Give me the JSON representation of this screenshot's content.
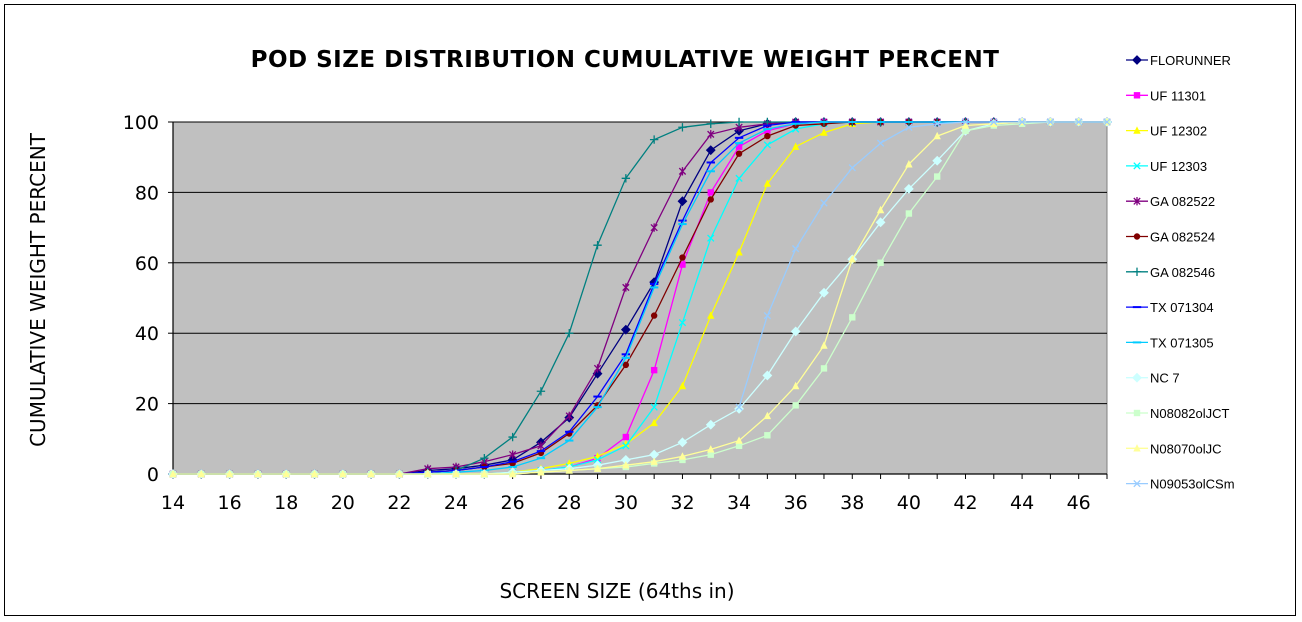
{
  "chart_data": {
    "type": "line",
    "title": "POD SIZE DISTRIBUTION CUMULATIVE WEIGHT PERCENT",
    "xlabel": "SCREEN SIZE (64ths in)",
    "ylabel": "CUMULATIVE WEIGHT PERCENT",
    "xlim": [
      14,
      47
    ],
    "ylim": [
      0,
      100
    ],
    "x_ticks": [
      "14",
      "16",
      "18",
      "20",
      "22",
      "24",
      "26",
      "28",
      "30",
      "32",
      "34",
      "36",
      "38",
      "40",
      "42",
      "44",
      "46"
    ],
    "y_ticks": [
      "0",
      "20",
      "40",
      "60",
      "80",
      "100"
    ],
    "plot_background": "#c0c0c0",
    "grid": "horizontal",
    "legend_position": "right",
    "series": [
      {
        "name": "FLORUNNER",
        "color": "#000080",
        "marker": "diamond",
        "x": [
          14,
          15,
          16,
          17,
          18,
          19,
          20,
          21,
          22,
          23,
          24,
          25,
          26,
          27,
          28,
          29,
          30,
          31,
          32,
          33,
          34,
          35,
          36,
          37,
          38,
          39,
          40,
          41,
          42,
          43,
          44,
          45,
          46,
          47
        ],
        "y": [
          0,
          0,
          0,
          0,
          0,
          0,
          0,
          0,
          0,
          1,
          1.5,
          2.5,
          4,
          9,
          16,
          28.5,
          41,
          54.5,
          77.5,
          92,
          97.5,
          99.5,
          100,
          100,
          100,
          100,
          100,
          100,
          100,
          100,
          100,
          100,
          100,
          100
        ]
      },
      {
        "name": "UF 11301",
        "color": "#ff00ff",
        "marker": "square",
        "x": [
          14,
          15,
          16,
          17,
          18,
          19,
          20,
          21,
          22,
          23,
          24,
          25,
          26,
          27,
          28,
          29,
          30,
          31,
          32,
          33,
          34,
          35,
          36,
          37,
          38,
          39,
          40,
          41,
          42,
          43,
          44,
          45,
          46,
          47
        ],
        "y": [
          0,
          0,
          0,
          0,
          0,
          0,
          0,
          0,
          0,
          0,
          0,
          0,
          0.5,
          1,
          2,
          4.5,
          10.5,
          29.5,
          59.5,
          80,
          93,
          97.5,
          99.5,
          100,
          100,
          100,
          100,
          100,
          100,
          100,
          100,
          100,
          100,
          100
        ]
      },
      {
        "name": "UF 12302",
        "color": "#ffff00",
        "marker": "triangle",
        "x": [
          14,
          15,
          16,
          17,
          18,
          19,
          20,
          21,
          22,
          23,
          24,
          25,
          26,
          27,
          28,
          29,
          30,
          31,
          32,
          33,
          34,
          35,
          36,
          37,
          38,
          39,
          40,
          41,
          42,
          43,
          44,
          45,
          46,
          47
        ],
        "y": [
          0,
          0,
          0,
          0,
          0,
          0,
          0,
          0,
          0,
          0,
          0,
          0,
          0.5,
          1.5,
          3,
          5,
          8.5,
          14.5,
          25,
          45,
          63,
          82.5,
          93,
          97,
          99.5,
          100,
          100,
          100,
          100,
          100,
          100,
          100,
          100,
          100
        ]
      },
      {
        "name": "UF 12303",
        "color": "#00ffff",
        "marker": "x",
        "x": [
          14,
          15,
          16,
          17,
          18,
          19,
          20,
          21,
          22,
          23,
          24,
          25,
          26,
          27,
          28,
          29,
          30,
          31,
          32,
          33,
          34,
          35,
          36,
          37,
          38,
          39,
          40,
          41,
          42,
          43,
          44,
          45,
          46,
          47
        ],
        "y": [
          0,
          0,
          0,
          0,
          0,
          0,
          0,
          0,
          0,
          0,
          0,
          0,
          0.5,
          1,
          2,
          4,
          8,
          19,
          43,
          67,
          84,
          93.5,
          98,
          99.5,
          100,
          100,
          100,
          100,
          100,
          100,
          100,
          100,
          100,
          100
        ]
      },
      {
        "name": "GA 082522",
        "color": "#800080",
        "marker": "star",
        "x": [
          14,
          15,
          16,
          17,
          18,
          19,
          20,
          21,
          22,
          23,
          24,
          25,
          26,
          27,
          28,
          29,
          30,
          31,
          32,
          33,
          34,
          35,
          36,
          37,
          38,
          39,
          40,
          41,
          42,
          43,
          44,
          45,
          46,
          47
        ],
        "y": [
          0,
          0,
          0,
          0,
          0,
          0,
          0,
          0,
          0,
          1.5,
          2,
          3.5,
          5.5,
          8,
          16.5,
          30,
          53,
          70,
          86,
          96.5,
          98.5,
          99.5,
          100,
          100,
          100,
          100,
          100,
          100,
          100,
          100,
          100,
          100,
          100,
          100
        ]
      },
      {
        "name": "GA 082524",
        "color": "#800000",
        "marker": "circle",
        "x": [
          14,
          15,
          16,
          17,
          18,
          19,
          20,
          21,
          22,
          23,
          24,
          25,
          26,
          27,
          28,
          29,
          30,
          31,
          32,
          33,
          34,
          35,
          36,
          37,
          38,
          39,
          40,
          41,
          42,
          43,
          44,
          45,
          46,
          47
        ],
        "y": [
          0,
          0,
          0,
          0,
          0,
          0,
          0,
          0,
          0,
          0.5,
          1,
          2,
          3,
          6,
          11.5,
          19.5,
          31,
          45,
          61.5,
          78,
          91,
          96,
          99,
          99.5,
          100,
          100,
          100,
          100,
          100,
          100,
          100,
          100,
          100,
          100
        ]
      },
      {
        "name": "GA 082546",
        "color": "#008080",
        "marker": "plus",
        "x": [
          14,
          15,
          16,
          17,
          18,
          19,
          20,
          21,
          22,
          23,
          24,
          25,
          26,
          27,
          28,
          29,
          30,
          31,
          32,
          33,
          34,
          35,
          36,
          37,
          38,
          39,
          40,
          41,
          42,
          43,
          44,
          45,
          46,
          47
        ],
        "y": [
          0,
          0,
          0,
          0,
          0,
          0,
          0,
          0,
          0,
          0.5,
          1,
          4.5,
          10.5,
          23.5,
          40,
          65,
          84,
          95,
          98.5,
          99.5,
          100,
          100,
          100,
          100,
          100,
          100,
          100,
          100,
          100,
          100,
          100,
          100,
          100,
          100
        ]
      },
      {
        "name": "TX 071304",
        "color": "#0000ff",
        "marker": "dash",
        "x": [
          14,
          15,
          16,
          17,
          18,
          19,
          20,
          21,
          22,
          23,
          24,
          25,
          26,
          27,
          28,
          29,
          30,
          31,
          32,
          33,
          34,
          35,
          36,
          37,
          38,
          39,
          40,
          41,
          42,
          43,
          44,
          45,
          46,
          47
        ],
        "y": [
          0,
          0,
          0,
          0,
          0,
          0,
          0,
          0,
          0,
          0.5,
          1,
          2,
          3.5,
          6.5,
          12,
          22,
          34,
          54,
          72,
          88.5,
          95.5,
          99,
          100,
          100,
          100,
          100,
          100,
          100,
          100,
          100,
          100,
          100,
          100,
          100
        ]
      },
      {
        "name": "TX 071305",
        "color": "#00ccff",
        "marker": "dash",
        "x": [
          14,
          15,
          16,
          17,
          18,
          19,
          20,
          21,
          22,
          23,
          24,
          25,
          26,
          27,
          28,
          29,
          30,
          31,
          32,
          33,
          34,
          35,
          36,
          37,
          38,
          39,
          40,
          41,
          42,
          43,
          44,
          45,
          46,
          47
        ],
        "y": [
          0,
          0,
          0,
          0,
          0,
          0,
          0,
          0,
          0,
          0,
          0.5,
          1,
          2,
          4.5,
          9.5,
          19,
          33,
          53,
          71,
          86,
          94,
          98,
          99.5,
          100,
          100,
          100,
          100,
          100,
          100,
          100,
          100,
          100,
          100,
          100
        ]
      },
      {
        "name": "NC 7",
        "color": "#ccffff",
        "marker": "diamond",
        "x": [
          14,
          15,
          16,
          17,
          18,
          19,
          20,
          21,
          22,
          23,
          24,
          25,
          26,
          27,
          28,
          29,
          30,
          31,
          32,
          33,
          34,
          35,
          36,
          37,
          38,
          39,
          40,
          41,
          42,
          43,
          44,
          45,
          46,
          47
        ],
        "y": [
          0,
          0,
          0,
          0,
          0,
          0,
          0,
          0,
          0,
          0,
          0,
          0,
          0.5,
          1,
          1.5,
          2.5,
          4,
          5.5,
          9,
          14,
          18.5,
          28,
          40.5,
          51.5,
          61,
          71.5,
          81,
          89,
          97.5,
          99.5,
          100,
          100,
          100,
          100
        ]
      },
      {
        "name": "N08082olJCT",
        "color": "#ccffcc",
        "marker": "square",
        "x": [
          14,
          15,
          16,
          17,
          18,
          19,
          20,
          21,
          22,
          23,
          24,
          25,
          26,
          27,
          28,
          29,
          30,
          31,
          32,
          33,
          34,
          35,
          36,
          37,
          38,
          39,
          40,
          41,
          42,
          43,
          44,
          45,
          46,
          47
        ],
        "y": [
          0,
          0,
          0,
          0,
          0,
          0,
          0,
          0,
          0,
          0,
          0,
          0,
          0,
          0.5,
          1,
          1.5,
          2,
          3,
          4,
          5.5,
          8,
          11,
          19.5,
          30,
          44.5,
          60,
          74,
          84.5,
          97.5,
          99,
          99.5,
          100,
          100,
          100
        ]
      },
      {
        "name": "N08070olJC",
        "color": "#ffff99",
        "marker": "triangle",
        "x": [
          14,
          15,
          16,
          17,
          18,
          19,
          20,
          21,
          22,
          23,
          24,
          25,
          26,
          27,
          28,
          29,
          30,
          31,
          32,
          33,
          34,
          35,
          36,
          37,
          38,
          39,
          40,
          41,
          42,
          43,
          44,
          45,
          46,
          47
        ],
        "y": [
          0,
          0,
          0,
          0,
          0,
          0,
          0,
          0,
          0,
          0,
          0,
          0,
          0,
          0.5,
          1,
          1.5,
          2.5,
          3.5,
          5,
          7,
          9.5,
          16.5,
          25,
          36.5,
          61,
          75,
          88,
          96,
          99,
          99.5,
          100,
          100,
          100,
          100
        ]
      },
      {
        "name": "N09053olCSm",
        "color": "#99ccff",
        "marker": "x",
        "x": [
          34,
          35,
          36,
          37,
          38,
          39,
          40,
          41,
          42,
          43,
          44,
          45,
          46,
          47
        ],
        "y": [
          19,
          45,
          64,
          77,
          87,
          94,
          98.5,
          99.5,
          100,
          100,
          100,
          100,
          100,
          100
        ]
      }
    ]
  }
}
